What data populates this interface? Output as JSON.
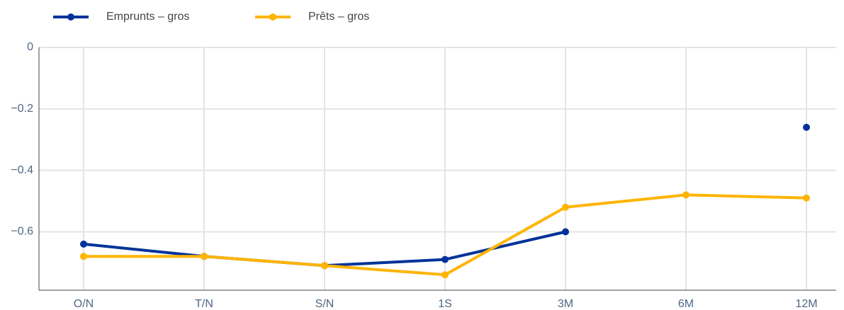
{
  "chart_data": {
    "type": "line",
    "categories": [
      "O/N",
      "T/N",
      "S/N",
      "1S",
      "3M",
      "6M",
      "12M"
    ],
    "series": [
      {
        "name": "Emprunts – gros",
        "color": "#003299",
        "values": [
          -0.64,
          -0.68,
          -0.71,
          -0.69,
          -0.6,
          null,
          -0.26
        ]
      },
      {
        "name": "Prêts – gros",
        "color": "#ffb400",
        "values": [
          -0.68,
          -0.68,
          -0.71,
          -0.74,
          -0.52,
          -0.48,
          -0.49
        ]
      }
    ],
    "ylim": [
      -0.79,
      0
    ],
    "yticks": [
      0,
      {
        "value": -0.2,
        "label": "−0.2"
      },
      {
        "value": -0.4,
        "label": "−0.4"
      },
      {
        "value": -0.6,
        "label": "−0.6"
      }
    ],
    "grid": true,
    "legend": "top"
  }
}
